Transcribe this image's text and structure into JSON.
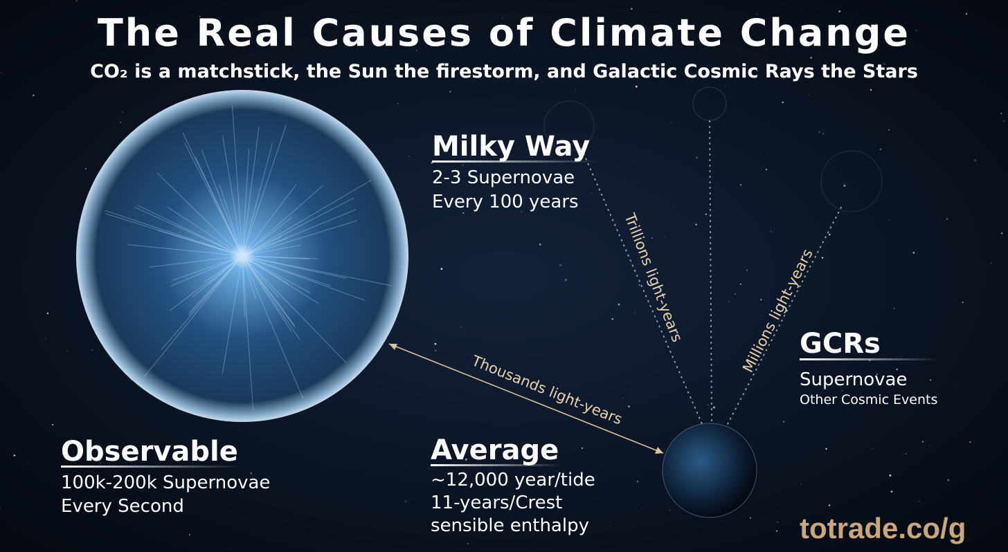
{
  "title": "The Real Causes of Climate Change",
  "subtitle": "CO₂ is a matchstick, the Sun the firestorm, and Galactic Cosmic Rays the Stars",
  "labels": {
    "milky_way": {
      "heading": "Milky Way",
      "lines": [
        "2-3 Supernovae",
        "Every 100 years"
      ]
    },
    "observable": {
      "heading": "Observable",
      "lines": [
        "100k-200k Supernovae",
        "Every Second"
      ]
    },
    "average": {
      "heading": "Average",
      "lines": [
        "~12,000 year/tide",
        "11-years/Crest",
        "sensible enthalpy"
      ]
    },
    "gcrs": {
      "heading": "GCRs",
      "lines": [
        "Supernovae",
        "Other Cosmic Events"
      ]
    }
  },
  "distances": {
    "trillions": "Trillions light-years",
    "millions": "Millions light-years",
    "thousands": "Thousands light-years"
  },
  "watermark": "totrade.co/g"
}
